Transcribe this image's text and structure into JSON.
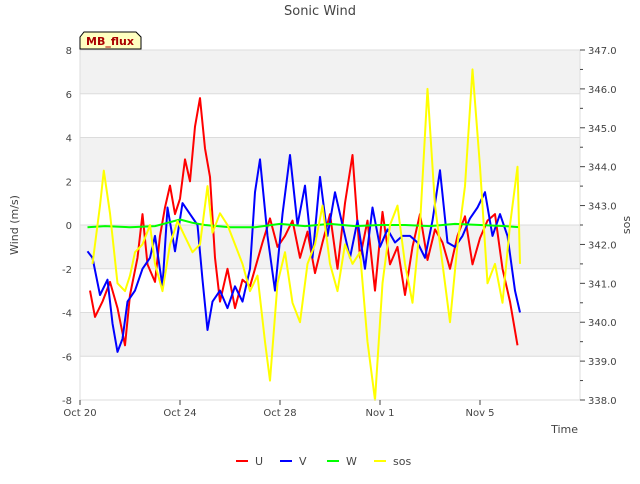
{
  "chart_data": {
    "type": "line",
    "title": "Sonic Wind",
    "xlabel": "Time",
    "ylabel": "Wind (m/s)",
    "y2label": "sos",
    "annotation": "MB_flux",
    "xlim": [
      0,
      20
    ],
    "ylim": [
      -8,
      8
    ],
    "y2lim": [
      338,
      347
    ],
    "x_ticks": [
      {
        "value": 0,
        "label": "Oct 20"
      },
      {
        "value": 4,
        "label": "Oct 24"
      },
      {
        "value": 8,
        "label": "Oct 28"
      },
      {
        "value": 12,
        "label": "Nov 1"
      },
      {
        "value": 16,
        "label": "Nov 5"
      }
    ],
    "y_ticks": [
      -8,
      -6,
      -4,
      -2,
      0,
      2,
      4,
      6,
      8
    ],
    "y2_ticks": [
      338.0,
      339.0,
      340.0,
      341.0,
      342.0,
      343.0,
      344.0,
      345.0,
      346.0,
      347.0
    ],
    "x_unit": "days since Oct 20",
    "legend_position": "bottom-center",
    "colors": {
      "U": "#ff0000",
      "V": "#0000ff",
      "W": "#00ff00",
      "sos": "#ffff00"
    },
    "series": [
      {
        "name": "U",
        "axis": "left",
        "x": [
          0.4,
          0.6,
          0.9,
          1.2,
          1.5,
          1.8,
          2.0,
          2.3,
          2.5,
          2.7,
          3.0,
          3.2,
          3.4,
          3.6,
          3.8,
          4.0,
          4.2,
          4.4,
          4.6,
          4.8,
          5.0,
          5.2,
          5.4,
          5.6,
          5.9,
          6.2,
          6.5,
          6.8,
          7.0,
          7.3,
          7.6,
          7.9,
          8.2,
          8.5,
          8.8,
          9.1,
          9.4,
          9.7,
          10.0,
          10.3,
          10.6,
          10.9,
          11.2,
          11.5,
          11.8,
          12.1,
          12.4,
          12.7,
          13.0,
          13.3,
          13.6,
          13.9,
          14.2,
          14.5,
          14.8,
          15.1,
          15.4,
          15.7,
          16.0,
          16.3,
          16.6,
          16.9,
          17.2,
          17.5
        ],
        "y": [
          -3.0,
          -4.2,
          -3.5,
          -2.6,
          -3.8,
          -5.5,
          -3.2,
          -1.5,
          0.5,
          -1.8,
          -2.6,
          -0.5,
          0.8,
          1.8,
          0.5,
          1.2,
          3.0,
          2.0,
          4.5,
          5.8,
          3.5,
          2.2,
          -1.5,
          -3.5,
          -2.0,
          -3.8,
          -2.5,
          -2.8,
          -2.0,
          -0.8,
          0.3,
          -1.0,
          -0.5,
          0.2,
          -1.5,
          -0.3,
          -2.2,
          -0.8,
          0.5,
          -2.0,
          1.0,
          3.2,
          -1.5,
          0.2,
          -3.0,
          0.6,
          -1.8,
          -1.0,
          -3.2,
          -1.0,
          0.5,
          -1.6,
          -0.2,
          -0.8,
          -2.0,
          -0.5,
          0.4,
          -1.8,
          -0.6,
          0.2,
          0.5,
          -2.0,
          -3.5,
          -5.5
        ]
      },
      {
        "name": "V",
        "axis": "left",
        "x": [
          0.3,
          0.5,
          0.8,
          1.1,
          1.3,
          1.5,
          1.7,
          1.9,
          2.2,
          2.5,
          2.8,
          3.0,
          3.3,
          3.5,
          3.8,
          4.1,
          4.4,
          4.7,
          4.9,
          5.1,
          5.3,
          5.6,
          5.9,
          6.2,
          6.5,
          6.8,
          7.0,
          7.2,
          7.5,
          7.8,
          8.1,
          8.4,
          8.7,
          9.0,
          9.3,
          9.6,
          9.9,
          10.2,
          10.5,
          10.8,
          11.1,
          11.4,
          11.7,
          12.0,
          12.3,
          12.6,
          12.9,
          13.2,
          13.5,
          13.8,
          14.1,
          14.4,
          14.7,
          15.0,
          15.3,
          15.6,
          15.9,
          16.2,
          16.5,
          16.8,
          17.1,
          17.4,
          17.6
        ],
        "y": [
          -1.2,
          -1.5,
          -3.2,
          -2.5,
          -4.5,
          -5.8,
          -5.2,
          -3.5,
          -3.0,
          -2.0,
          -1.5,
          -0.5,
          -2.8,
          0.8,
          -1.2,
          1.0,
          0.5,
          0.0,
          -2.5,
          -4.8,
          -3.5,
          -3.0,
          -3.8,
          -2.8,
          -3.5,
          -2.0,
          1.5,
          3.0,
          -0.5,
          -3.0,
          0.5,
          3.2,
          0.0,
          1.8,
          -1.5,
          2.2,
          -0.5,
          1.5,
          0.0,
          -1.5,
          0.2,
          -2.0,
          0.8,
          -1.0,
          -0.2,
          -0.8,
          -0.5,
          -0.5,
          -0.8,
          -1.5,
          0.2,
          2.5,
          -0.8,
          -1.0,
          -0.5,
          0.3,
          0.8,
          1.5,
          -0.5,
          0.5,
          -0.5,
          -3.0,
          -4.0
        ]
      },
      {
        "name": "W",
        "axis": "left",
        "x": [
          0.3,
          1.0,
          2.0,
          3.0,
          3.5,
          4.0,
          4.5,
          5.0,
          6.0,
          7.0,
          8.0,
          9.0,
          10.0,
          11.0,
          12.0,
          13.0,
          14.0,
          15.0,
          16.0,
          17.0,
          17.6
        ],
        "y": [
          -0.1,
          -0.05,
          -0.1,
          -0.05,
          0.1,
          0.25,
          0.1,
          0.0,
          -0.1,
          -0.1,
          0.05,
          -0.05,
          0.05,
          -0.05,
          0.0,
          0.0,
          -0.05,
          0.05,
          0.0,
          -0.05,
          -0.1
        ]
      },
      {
        "name": "sos",
        "axis": "right",
        "x": [
          0.5,
          0.8,
          0.95,
          1.2,
          1.5,
          1.8,
          2.0,
          2.2,
          2.5,
          2.8,
          3.0,
          3.3,
          3.6,
          3.9,
          4.2,
          4.5,
          4.8,
          5.1,
          5.3,
          5.6,
          5.9,
          6.2,
          6.5,
          6.8,
          7.1,
          7.4,
          7.6,
          7.9,
          8.2,
          8.5,
          8.8,
          9.1,
          9.4,
          9.7,
          10.0,
          10.3,
          10.6,
          10.9,
          11.2,
          11.5,
          11.8,
          12.1,
          12.4,
          12.7,
          13.0,
          13.3,
          13.6,
          13.9,
          14.2,
          14.5,
          14.8,
          15.1,
          15.4,
          15.7,
          16.0,
          16.3,
          16.6,
          16.9,
          17.2,
          17.5,
          17.6
        ],
        "y": [
          341.5,
          343.0,
          343.9,
          342.8,
          341.0,
          340.8,
          341.2,
          341.8,
          342.0,
          342.5,
          341.5,
          340.8,
          342.0,
          342.6,
          342.2,
          341.8,
          342.0,
          343.5,
          342.3,
          342.8,
          342.5,
          342.0,
          341.5,
          340.8,
          341.2,
          339.5,
          338.5,
          341.0,
          341.8,
          340.5,
          340.0,
          341.5,
          342.0,
          343.0,
          341.5,
          340.8,
          342.0,
          341.5,
          341.8,
          339.5,
          338.0,
          341.0,
          342.5,
          343.0,
          341.5,
          340.5,
          342.5,
          346.0,
          343.0,
          341.5,
          340.0,
          342.0,
          343.5,
          346.5,
          344.0,
          341.0,
          341.5,
          340.5,
          342.5,
          344.0,
          341.5
        ]
      }
    ]
  }
}
